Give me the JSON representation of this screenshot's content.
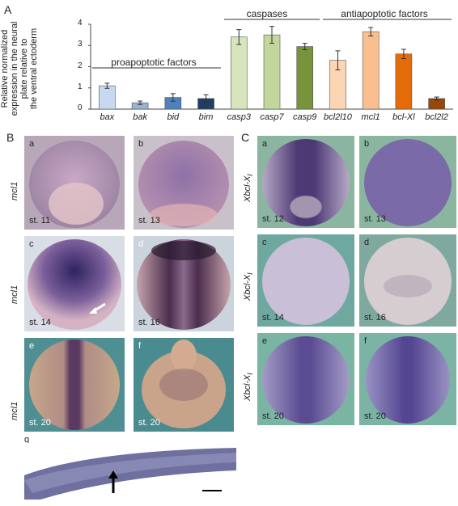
{
  "figure": {
    "panel_A": "A",
    "panel_B": "B",
    "panel_C": "C",
    "ylabel_lines": [
      "Relative normalized",
      "expression in the neural",
      "plate relative to",
      "the ventral ectoderm"
    ],
    "groups": [
      "proapoptotic factors",
      "caspases",
      "antiapoptotic factors"
    ],
    "yticks": [
      "0",
      "1",
      "2",
      "3",
      "4"
    ]
  },
  "chart_data": {
    "type": "bar",
    "categories": [
      "bax",
      "bak",
      "bid",
      "bim",
      "casp3",
      "casp7",
      "casp9",
      "bcl2l10",
      "mcl1",
      "bcl-Xl",
      "bcl2l2"
    ],
    "values": [
      1.1,
      0.3,
      0.55,
      0.5,
      3.4,
      3.5,
      2.95,
      2.3,
      3.65,
      2.6,
      0.5
    ],
    "errors": [
      0.12,
      0.08,
      0.18,
      0.18,
      0.35,
      0.4,
      0.15,
      0.45,
      0.2,
      0.22,
      0.07
    ],
    "colors": [
      "#c6d9f1",
      "#95b3d7",
      "#4f81bd",
      "#1f3d66",
      "#d7e4bc",
      "#c3d69b",
      "#77933c",
      "#fcd5b4",
      "#fabf8f",
      "#e36c09",
      "#974806"
    ],
    "ylim": [
      0,
      4
    ],
    "xlabel": "",
    "ylabel": "Relative normalized expression in the neural plate relative to the ventral ectoderm",
    "grid": false
  },
  "panelB": {
    "gene": "mcl1",
    "tiles": [
      {
        "letter": "a",
        "stage": "st. 11"
      },
      {
        "letter": "b",
        "stage": "st. 13"
      },
      {
        "letter": "c",
        "stage": "st. 14"
      },
      {
        "letter": "d",
        "stage": "st. 16"
      },
      {
        "letter": "e",
        "stage": "st. 20"
      },
      {
        "letter": "f",
        "stage": "st. 20"
      }
    ],
    "g_letter": "g"
  },
  "panelC": {
    "gene": "Xbcl-X",
    "gene_sub": "l",
    "tiles": [
      {
        "letter": "a",
        "stage": "st. 12"
      },
      {
        "letter": "b",
        "stage": "st. 13"
      },
      {
        "letter": "c",
        "stage": "st. 14"
      },
      {
        "letter": "d",
        "stage": "st. 16"
      },
      {
        "letter": "e",
        "stage": "st. 20"
      },
      {
        "letter": "f",
        "stage": "st. 20"
      }
    ]
  }
}
